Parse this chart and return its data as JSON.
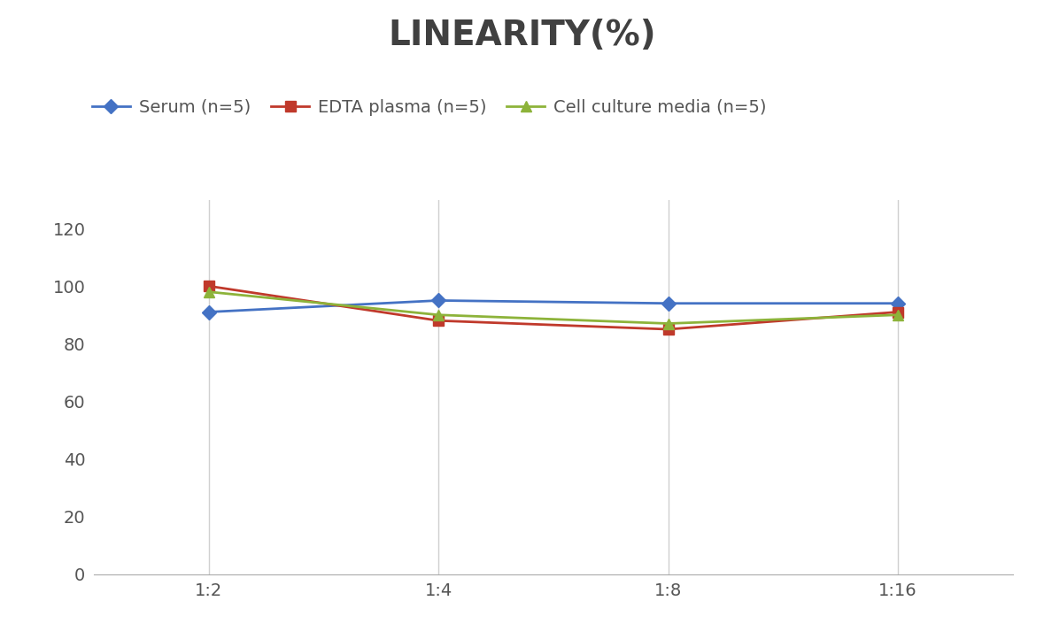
{
  "title": "LINEARITY(%)",
  "title_fontsize": 28,
  "title_fontweight": "bold",
  "title_color": "#404040",
  "x_labels": [
    "1:2",
    "1:4",
    "1:8",
    "1:16"
  ],
  "x_positions": [
    0,
    1,
    2,
    3
  ],
  "series": [
    {
      "label": "Serum (n=5)",
      "values": [
        91,
        95,
        94,
        94
      ],
      "color": "#4472C4",
      "marker": "D",
      "marker_size": 8,
      "linewidth": 2.0
    },
    {
      "label": "EDTA plasma (n=5)",
      "values": [
        100,
        88,
        85,
        91
      ],
      "color": "#C0392B",
      "marker": "s",
      "marker_size": 8,
      "linewidth": 2.0
    },
    {
      "label": "Cell culture media (n=5)",
      "values": [
        98,
        90,
        87,
        90
      ],
      "color": "#8DB33A",
      "marker": "^",
      "marker_size": 9,
      "linewidth": 2.0
    }
  ],
  "ylim": [
    0,
    130
  ],
  "yticks": [
    0,
    20,
    40,
    60,
    80,
    100,
    120
  ],
  "background_color": "#ffffff",
  "grid_color": "#d0d0d0",
  "legend_fontsize": 14,
  "tick_fontsize": 14,
  "xtick_fontsize": 14,
  "tick_color": "#555555"
}
